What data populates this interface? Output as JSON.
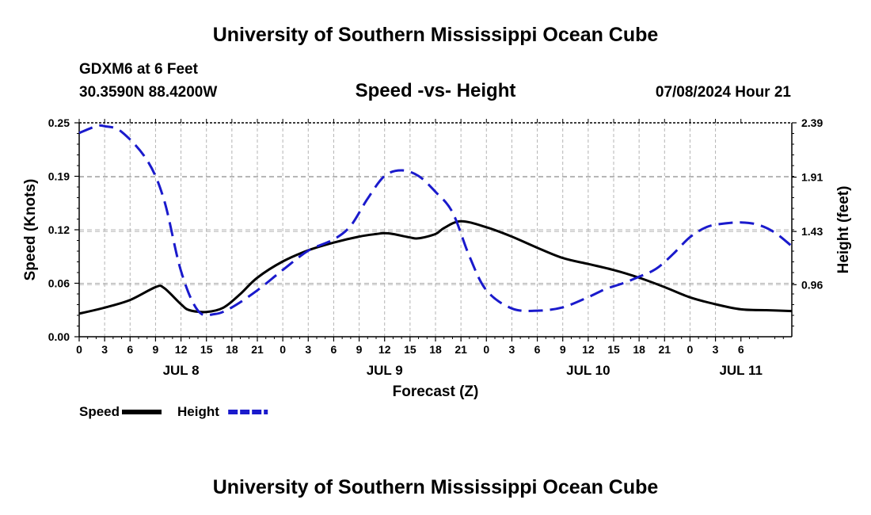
{
  "page": {
    "title_top": "University of Southern Mississippi Ocean Cube",
    "title_bottom": "University of Southern Mississippi Ocean Cube",
    "station": "GDXM6 at 6 Feet",
    "coords": "30.3590N  88.4200W",
    "subtitle": "Speed -vs- Height",
    "datetime": "07/08/2024 Hour 21"
  },
  "chart_data": {
    "type": "line",
    "title": "Speed -vs- Height",
    "xlabel": "Forecast (Z)",
    "ylabel": "Speed (Knots)",
    "y2label": "Height (feet)",
    "x_range_hours": [
      0,
      84
    ],
    "ylim": [
      0,
      0.25
    ],
    "y2lim": [
      0.5,
      2.39
    ],
    "y_ticks": [
      "0.00",
      "0.06",
      "0.12",
      "0.19",
      "0.25"
    ],
    "y_tick_values": [
      0,
      0.0625,
      0.125,
      0.1875,
      0.25
    ],
    "y2_ticks": [
      "0.96",
      "1.43",
      "1.91",
      "2.39"
    ],
    "y2_tick_values": [
      0.96,
      1.43,
      1.91,
      2.39
    ],
    "x_ticks": [
      "0",
      "3",
      "6",
      "9",
      "12",
      "15",
      "18",
      "21",
      "0",
      "3",
      "6",
      "9",
      "12",
      "15",
      "18",
      "21",
      "0",
      "3",
      "6",
      "9",
      "12",
      "15",
      "18",
      "21",
      "0",
      "3",
      "6"
    ],
    "day_labels": [
      {
        "label": "JUL 8",
        "hour": 12
      },
      {
        "label": "JUL 9",
        "hour": 36
      },
      {
        "label": "JUL 10",
        "hour": 60
      },
      {
        "label": "JUL 11",
        "hour": 78
      }
    ],
    "grid": true,
    "series": [
      {
        "name": "Speed",
        "axis": "left",
        "color": "#000000",
        "dash": "solid",
        "x": [
          0,
          3,
          6,
          9,
          10,
          12,
          13,
          15,
          17,
          19,
          21,
          24,
          27,
          30,
          33,
          35,
          36,
          37,
          39,
          40,
          42,
          43,
          45,
          48,
          51,
          54,
          57,
          60,
          63,
          66,
          69,
          72,
          75,
          78,
          81,
          84
        ],
        "y": [
          0.027,
          0.034,
          0.043,
          0.058,
          0.057,
          0.038,
          0.031,
          0.029,
          0.034,
          0.05,
          0.069,
          0.088,
          0.101,
          0.11,
          0.117,
          0.12,
          0.121,
          0.12,
          0.116,
          0.115,
          0.12,
          0.127,
          0.135,
          0.128,
          0.117,
          0.104,
          0.092,
          0.085,
          0.078,
          0.069,
          0.058,
          0.046,
          0.038,
          0.032,
          0.031,
          0.03
        ]
      },
      {
        "name": "Height",
        "axis": "right",
        "color": "#1a1acc",
        "dash": "dashed",
        "x": [
          0,
          2,
          3,
          5,
          8,
          10,
          12,
          14,
          16,
          18,
          21,
          24,
          27,
          30,
          32,
          34,
          36,
          38,
          40,
          42,
          44,
          46,
          48,
          51,
          54,
          57,
          60,
          62,
          64,
          66,
          68,
          70,
          72,
          74,
          76,
          78,
          80,
          82,
          84
        ],
        "y": [
          2.3,
          2.36,
          2.36,
          2.31,
          2.06,
          1.71,
          1.08,
          0.73,
          0.7,
          0.76,
          0.91,
          1.09,
          1.26,
          1.36,
          1.48,
          1.72,
          1.92,
          1.97,
          1.92,
          1.78,
          1.6,
          1.21,
          0.91,
          0.75,
          0.73,
          0.76,
          0.85,
          0.92,
          0.97,
          1.03,
          1.1,
          1.23,
          1.38,
          1.47,
          1.5,
          1.51,
          1.49,
          1.42,
          1.3
        ]
      }
    ],
    "legend": [
      {
        "label": "Speed",
        "color": "#000000",
        "dash": "solid"
      },
      {
        "label": "Height",
        "color": "#1a1acc",
        "dash": "dashed"
      }
    ]
  }
}
